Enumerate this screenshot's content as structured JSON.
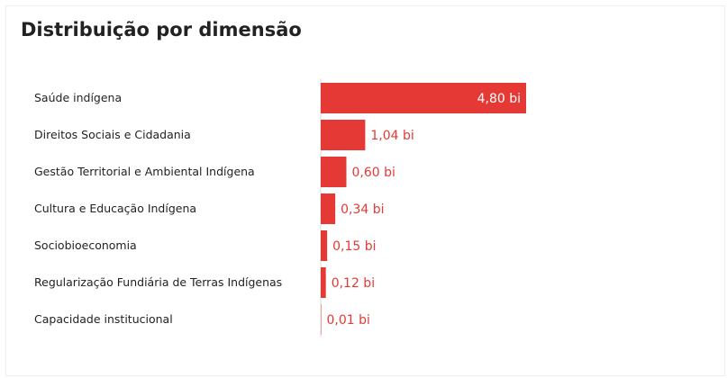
{
  "chart_data": {
    "type": "bar",
    "orientation": "horizontal",
    "title": "Distribuição por dimensão",
    "categories": [
      "Saúde indígena",
      "Direitos Sociais e Cidadania",
      "Gestão Territorial e Ambiental Indígena",
      "Cultura e Educação Indígena",
      "Sociobioeconomia",
      "Regularização Fundiária de Terras Indígenas",
      "Capacidade institucional"
    ],
    "values": [
      4.8,
      1.04,
      0.6,
      0.34,
      0.15,
      0.12,
      0.01
    ],
    "value_labels": [
      "4,80 bi",
      "1,04 bi",
      "0,60 bi",
      "0,34 bi",
      "0,15 bi",
      "0,12 bi",
      "0,01 bi"
    ],
    "color": "#e53935"
  }
}
